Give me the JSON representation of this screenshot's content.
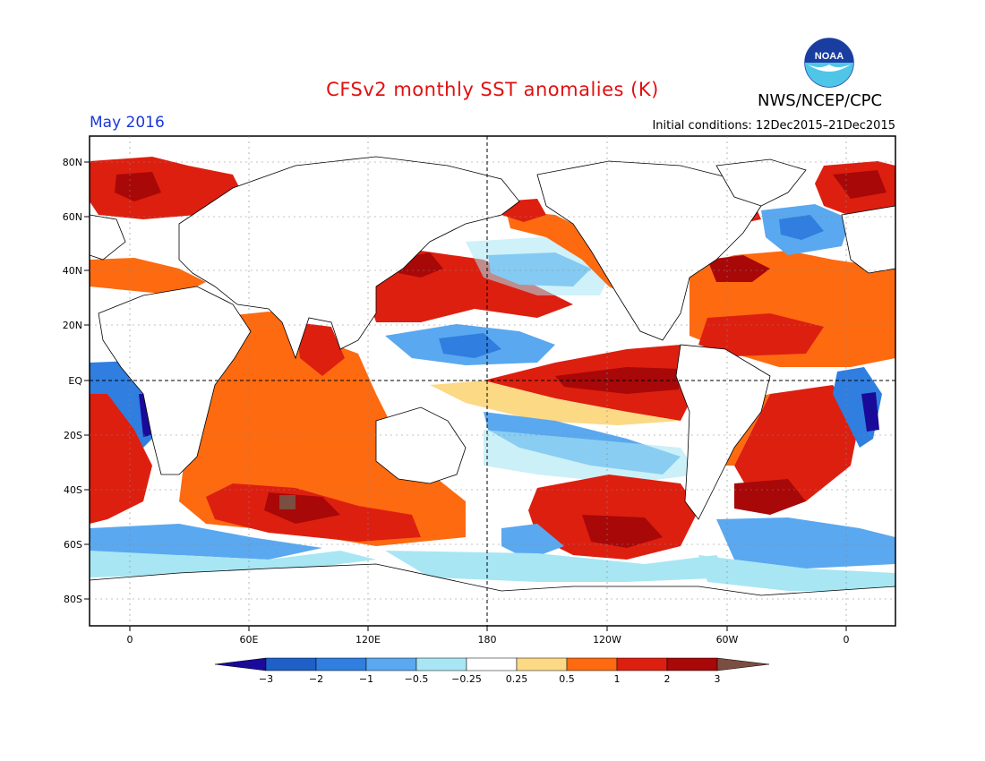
{
  "header": {
    "title": "CFSv2 monthly SST anomalies (K)",
    "agency": "NWS/NCEP/CPC",
    "period": "May 2016",
    "initial_conditions": "Initial conditions: 12Dec2015–21Dec2015"
  },
  "logo": {
    "text": "NOAA"
  },
  "axes": {
    "lat_labels": [
      "80N",
      "60N",
      "40N",
      "20N",
      "EQ",
      "20S",
      "40S",
      "60S",
      "80S"
    ],
    "lon_labels": [
      "0",
      "60E",
      "120E",
      "180",
      "120W",
      "60W",
      "0"
    ]
  },
  "colorbar": {
    "labels": [
      "−3",
      "−2",
      "−1",
      "−0.5",
      "−0.25",
      "0.25",
      "0.5",
      "1",
      "2",
      "3"
    ],
    "colors": [
      "#1a0a9a",
      "#1f5fc8",
      "#2f7ee0",
      "#5aa8ef",
      "#a8e6f4",
      "#ffffff",
      "#fbd985",
      "#fd6a10",
      "#dd1f10",
      "#a80808",
      "#7a4e40"
    ]
  }
}
